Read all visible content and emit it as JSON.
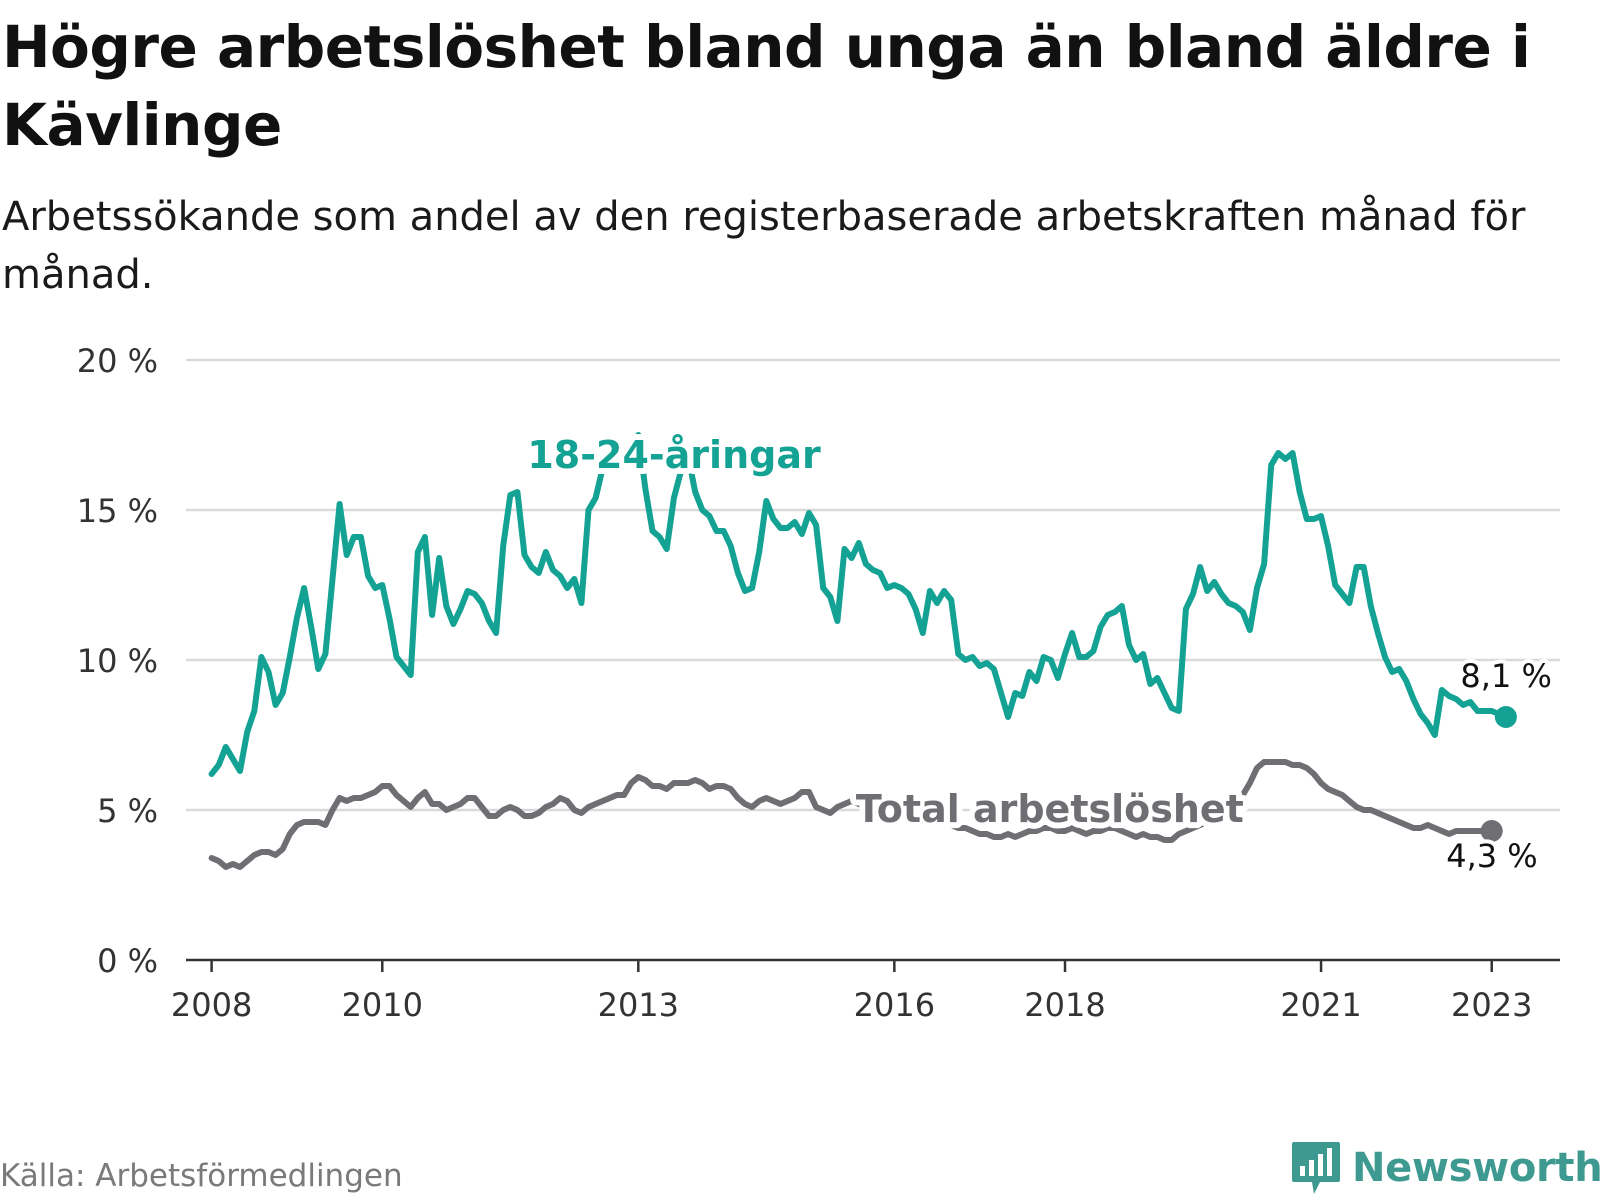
{
  "title": "Högre arbetslöshet bland unga än bland äldre i Kävlinge",
  "subtitle": "Arbetssökande som andel av den registerbaserade arbetskraften månad för månad.",
  "source": "Källa: Arbetsförmedlingen",
  "brand": {
    "name": "Newsworthy",
    "icon": "newsworthy-logo-icon",
    "color": "#3e9a91"
  },
  "chart_data": {
    "type": "line",
    "title": "Högre arbetslöshet bland unga än bland äldre i Kävlinge",
    "xlabel": "",
    "ylabel": "",
    "ylim": [
      0,
      20
    ],
    "xlim": [
      2007.7,
      2023.8
    ],
    "grid": true,
    "y_ticks": [
      0,
      5,
      10,
      15,
      20
    ],
    "y_tick_labels": [
      "0 %",
      "5 %",
      "10 %",
      "15 %",
      "20 %"
    ],
    "x_ticks": [
      2008,
      2010,
      2013,
      2016,
      2018,
      2021,
      2023
    ],
    "x_tick_labels": [
      "2008",
      "2010",
      "2013",
      "2016",
      "2018",
      "2021",
      "2023"
    ],
    "series": [
      {
        "name": "18-24-åringar",
        "label": "18-24-åringar",
        "color": "#13a294",
        "end_label": "8,1 %",
        "start": 2008.0,
        "step": 0.08333,
        "values": [
          6.2,
          6.5,
          7.1,
          6.7,
          6.3,
          7.6,
          8.3,
          10.1,
          9.6,
          8.5,
          8.9,
          10.1,
          11.4,
          12.4,
          11.1,
          9.7,
          10.2,
          12.7,
          15.2,
          13.5,
          14.1,
          14.1,
          12.8,
          12.4,
          12.5,
          11.4,
          10.1,
          9.8,
          9.5,
          13.6,
          14.1,
          11.5,
          13.4,
          11.8,
          11.2,
          11.7,
          12.3,
          12.2,
          11.9,
          11.3,
          10.9,
          13.8,
          15.5,
          15.6,
          13.5,
          13.1,
          12.9,
          13.6,
          13.0,
          12.8,
          12.4,
          12.7,
          11.9,
          15.0,
          15.4,
          16.4,
          16.7,
          16.9,
          16.8,
          17.1,
          17.5,
          15.7,
          14.3,
          14.1,
          13.7,
          15.4,
          16.3,
          16.8,
          15.6,
          15.0,
          14.8,
          14.3,
          14.3,
          13.8,
          12.9,
          12.3,
          12.4,
          13.6,
          15.3,
          14.7,
          14.4,
          14.4,
          14.6,
          14.2,
          14.9,
          14.5,
          12.4,
          12.1,
          11.3,
          13.7,
          13.4,
          13.9,
          13.2,
          13.0,
          12.9,
          12.4,
          12.5,
          12.4,
          12.2,
          11.7,
          10.9,
          12.3,
          11.9,
          12.3,
          12.0,
          10.2,
          10.0,
          10.1,
          9.8,
          9.9,
          9.7,
          8.9,
          8.1,
          8.9,
          8.8,
          9.6,
          9.3,
          10.1,
          10.0,
          9.4,
          10.2,
          10.9,
          10.1,
          10.1,
          10.3,
          11.1,
          11.5,
          11.6,
          11.8,
          10.5,
          10.0,
          10.2,
          9.2,
          9.4,
          8.9,
          8.4,
          8.3,
          11.7,
          12.2,
          13.1,
          12.3,
          12.6,
          12.2,
          11.9,
          11.8,
          11.6,
          11.0,
          12.4,
          13.2,
          16.5,
          16.9,
          16.7,
          16.9,
          15.6,
          14.7,
          14.7,
          14.8,
          13.8,
          12.5,
          12.2,
          11.9,
          13.1,
          13.1,
          11.8,
          10.9,
          10.1,
          9.6,
          9.7,
          9.3,
          8.7,
          8.2,
          7.9,
          7.5,
          9.0,
          8.8,
          8.7,
          8.5,
          8.6,
          8.3,
          8.3,
          8.3,
          8.2,
          8.1
        ]
      },
      {
        "name": "Total arbetslöshet",
        "label": "Total arbetslöshet",
        "color": "#6e6e73",
        "end_label": "4,3 %",
        "start": 2008.0,
        "step": 0.08333,
        "values": [
          3.4,
          3.3,
          3.1,
          3.2,
          3.1,
          3.3,
          3.5,
          3.6,
          3.6,
          3.5,
          3.7,
          4.2,
          4.5,
          4.6,
          4.6,
          4.6,
          4.5,
          5.0,
          5.4,
          5.3,
          5.4,
          5.4,
          5.5,
          5.6,
          5.8,
          5.8,
          5.5,
          5.3,
          5.1,
          5.4,
          5.6,
          5.2,
          5.2,
          5.0,
          5.1,
          5.2,
          5.4,
          5.4,
          5.1,
          4.8,
          4.8,
          5.0,
          5.1,
          5.0,
          4.8,
          4.8,
          4.9,
          5.1,
          5.2,
          5.4,
          5.3,
          5.0,
          4.9,
          5.1,
          5.2,
          5.3,
          5.4,
          5.5,
          5.5,
          5.9,
          6.1,
          6.0,
          5.8,
          5.8,
          5.7,
          5.9,
          5.9,
          5.9,
          6.0,
          5.9,
          5.7,
          5.8,
          5.8,
          5.7,
          5.4,
          5.2,
          5.1,
          5.3,
          5.4,
          5.3,
          5.2,
          5.3,
          5.4,
          5.6,
          5.6,
          5.1,
          5.0,
          4.9,
          5.1,
          5.2,
          5.3,
          5.2,
          5.1,
          5.0,
          4.9,
          4.9,
          4.8,
          4.9,
          4.7,
          4.7,
          4.6,
          4.8,
          4.7,
          4.6,
          4.5,
          4.4,
          4.4,
          4.3,
          4.2,
          4.2,
          4.1,
          4.1,
          4.2,
          4.1,
          4.2,
          4.3,
          4.3,
          4.4,
          4.4,
          4.3,
          4.3,
          4.4,
          4.3,
          4.2,
          4.3,
          4.3,
          4.4,
          4.4,
          4.3,
          4.2,
          4.1,
          4.2,
          4.1,
          4.1,
          4.0,
          4.0,
          4.2,
          4.3,
          4.4,
          4.5,
          4.6,
          4.7,
          4.8,
          5.0,
          5.3,
          5.5,
          5.9,
          6.4,
          6.6,
          6.6,
          6.6,
          6.6,
          6.5,
          6.5,
          6.4,
          6.2,
          5.9,
          5.7,
          5.6,
          5.5,
          5.3,
          5.1,
          5.0,
          5.0,
          4.9,
          4.8,
          4.7,
          4.6,
          4.5,
          4.4,
          4.4,
          4.5,
          4.4,
          4.3,
          4.2,
          4.3,
          4.3,
          4.3,
          4.3,
          4.3,
          4.3
        ]
      }
    ]
  }
}
